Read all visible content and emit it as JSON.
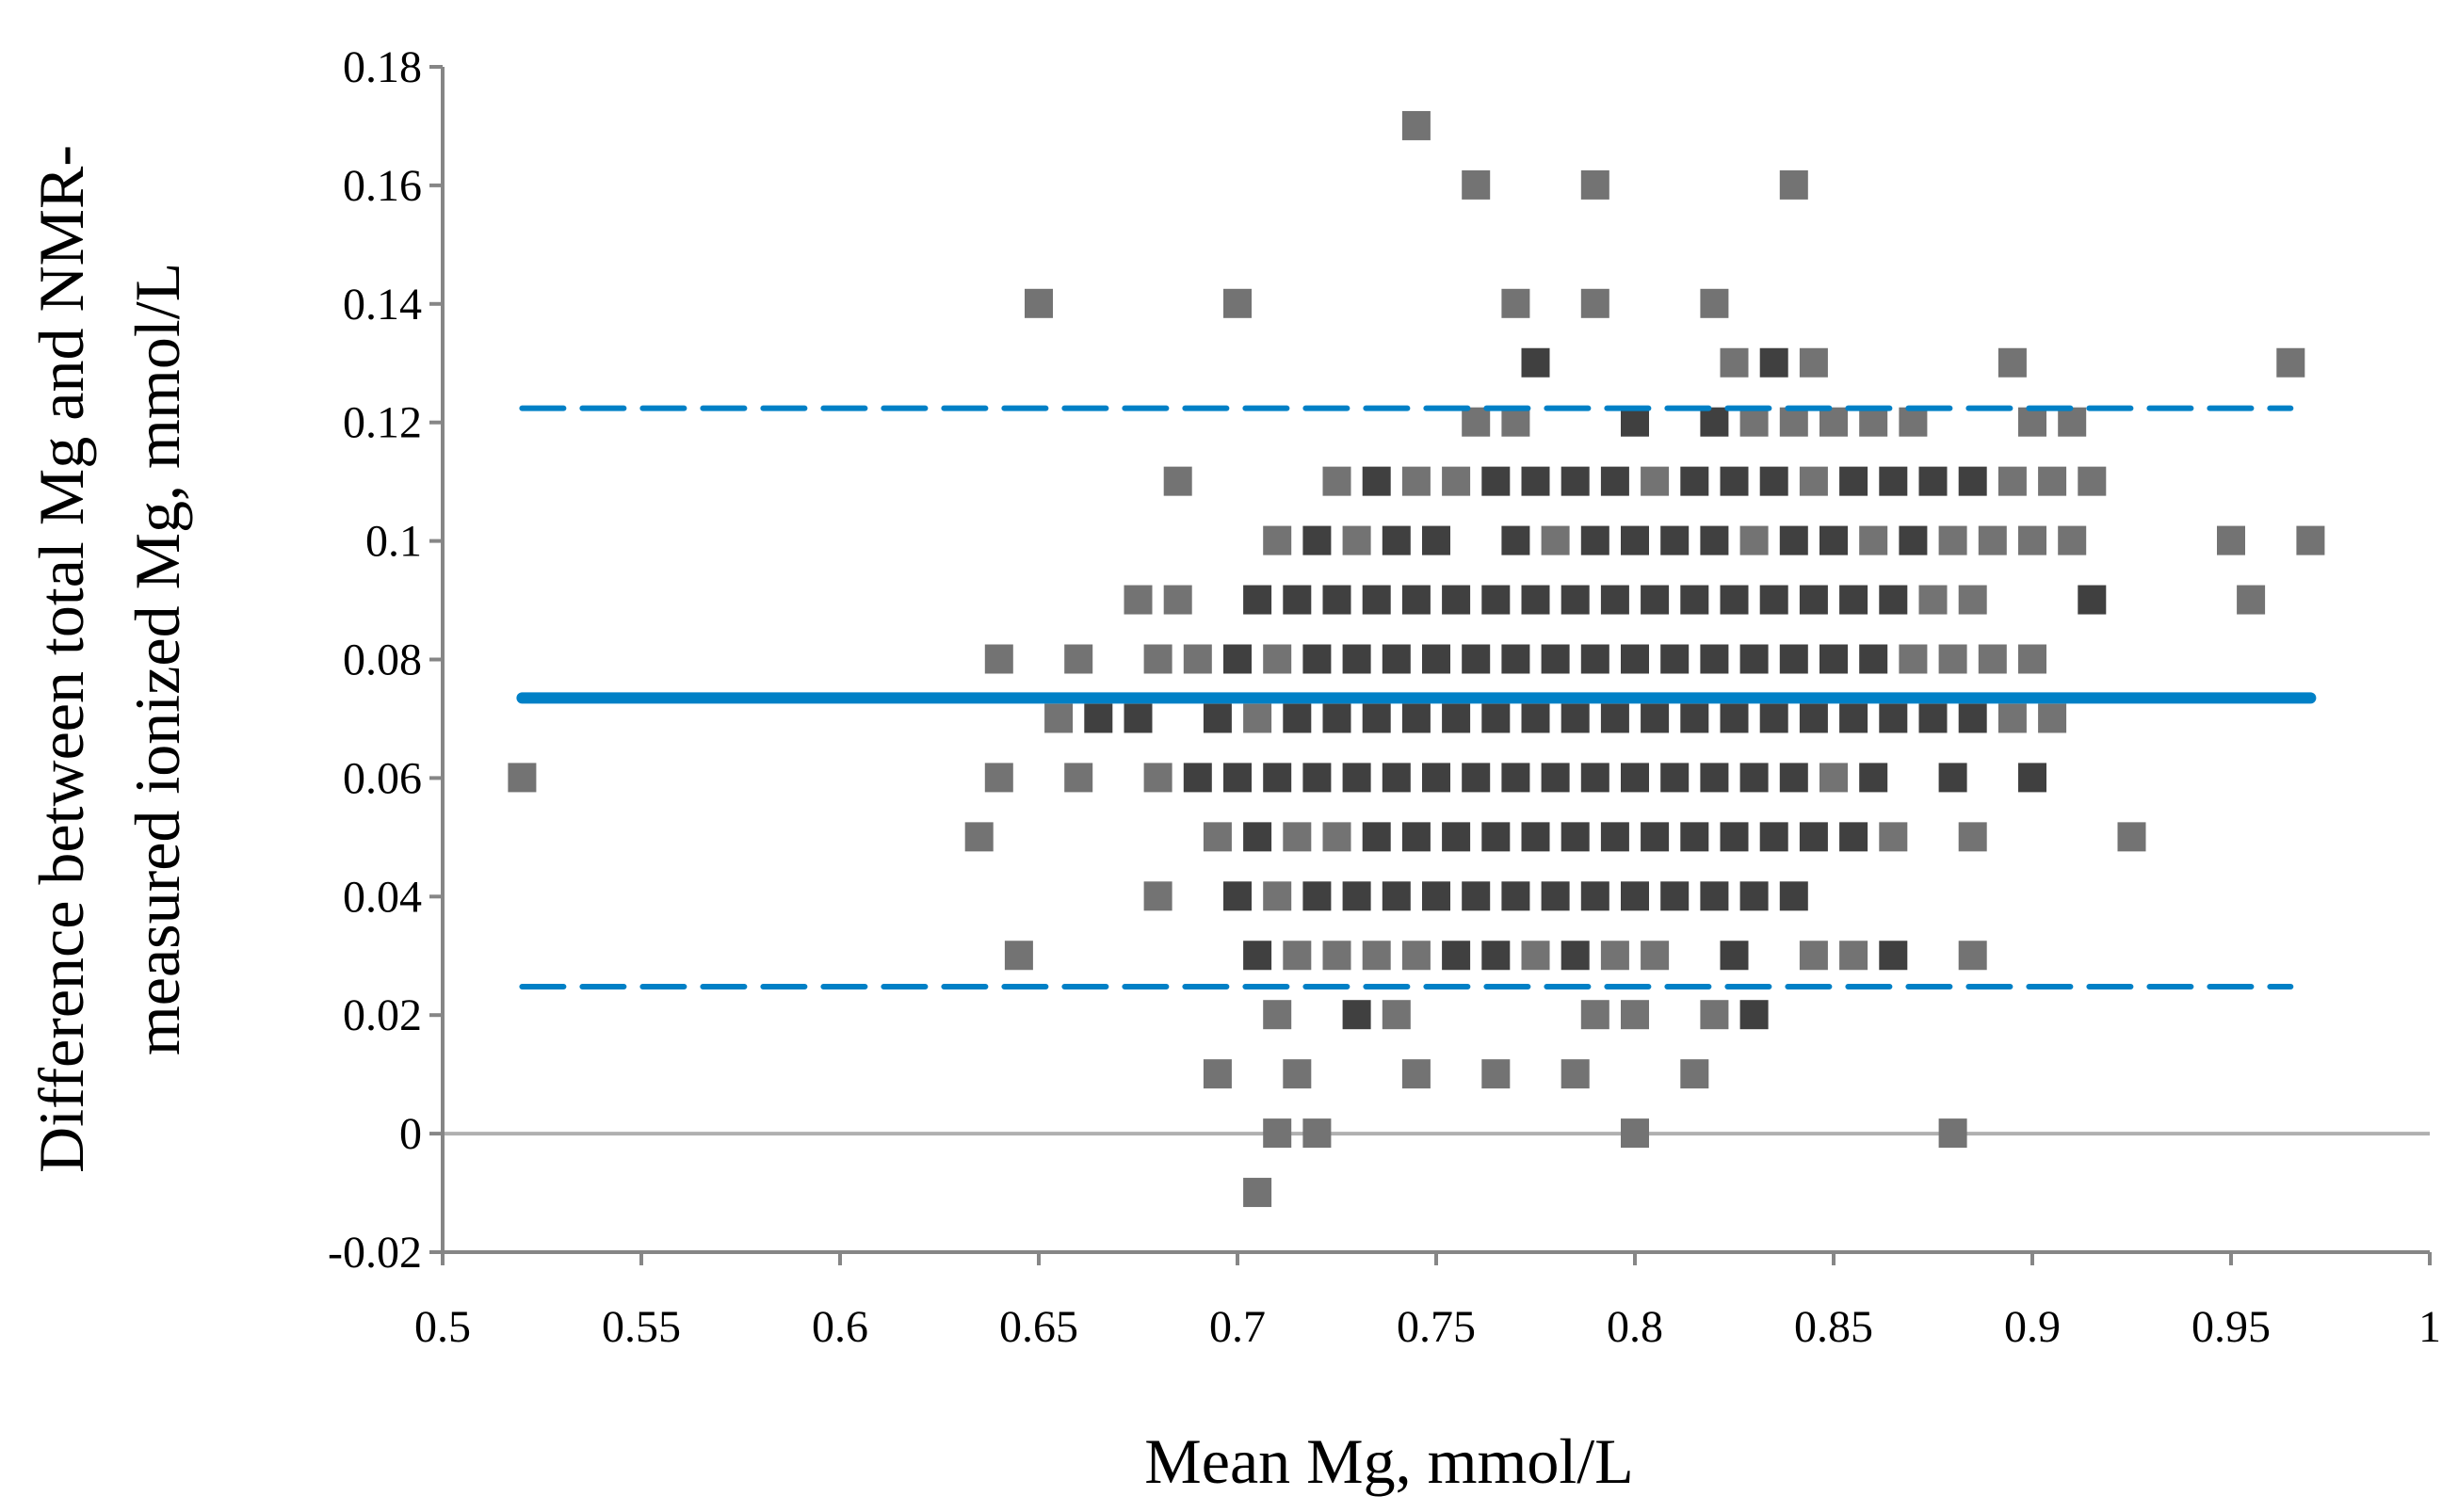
{
  "chart_data": {
    "type": "scatter",
    "title": "",
    "xlabel": "Mean Mg, mmol/L",
    "ylabel_lines": [
      "Difference between total Mg and NMR-",
      "measured ionized Mg, mmol/L"
    ],
    "xlim": [
      0.5,
      1.0
    ],
    "ylim": [
      -0.02,
      0.18
    ],
    "x_ticks": [
      0.5,
      0.55,
      0.6,
      0.65,
      0.7,
      0.75,
      0.8,
      0.85,
      0.9,
      0.95,
      1
    ],
    "x_tick_labels": [
      "0.5",
      "0.55",
      "0.6",
      "0.65",
      "0.7",
      "0.75",
      "0.8",
      "0.85",
      "0.9",
      "0.95",
      "1"
    ],
    "y_ticks": [
      -0.02,
      0,
      0.02,
      0.04,
      0.06,
      0.08,
      0.1,
      0.12,
      0.14,
      0.16,
      0.18
    ],
    "y_tick_labels": [
      "-0.02",
      "0",
      "0.02",
      "0.04",
      "0.06",
      "0.08",
      "0.1",
      "0.12",
      "0.14",
      "0.16",
      "0.18"
    ],
    "grid": false,
    "colors": {
      "dark": "#404040",
      "light": "#737373",
      "line": "#0080c6",
      "zero": "#b0b0b0"
    },
    "reference_lines": [
      {
        "name": "mean-difference",
        "y": 0.0735,
        "x_range": [
          0.52,
          0.97
        ],
        "style": "solid"
      },
      {
        "name": "upper-limit-of-agreement",
        "y": 0.1224,
        "x_range": [
          0.52,
          0.965
        ],
        "style": "dashed"
      },
      {
        "name": "lower-limit-of-agreement",
        "y": 0.0248,
        "x_range": [
          0.52,
          0.965
        ],
        "style": "dashed"
      }
    ],
    "series": [
      {
        "name": "light",
        "rows": [
          {
            "y": 0.17,
            "x": [
              0.745
            ]
          },
          {
            "y": 0.16,
            "x": [
              0.76,
              0.79,
              0.84
            ]
          },
          {
            "y": 0.14,
            "x": [
              0.65,
              0.7,
              0.77,
              0.79,
              0.82
            ]
          },
          {
            "y": 0.13,
            "x": [
              0.825,
              0.845,
              0.895,
              0.965
            ]
          },
          {
            "y": 0.12,
            "x": [
              0.76,
              0.77,
              0.83,
              0.84,
              0.85,
              0.86,
              0.87,
              0.9,
              0.91
            ]
          },
          {
            "y": 0.11,
            "x": [
              0.685,
              0.725,
              0.745,
              0.755,
              0.805,
              0.845,
              0.895,
              0.905,
              0.915
            ]
          },
          {
            "y": 0.1,
            "x": [
              0.71,
              0.73,
              0.78,
              0.83,
              0.86,
              0.88,
              0.89,
              0.9,
              0.91,
              0.95,
              0.97
            ]
          },
          {
            "y": 0.09,
            "x": [
              0.675,
              0.685,
              0.875,
              0.885,
              0.955
            ]
          },
          {
            "y": 0.08,
            "x": [
              0.64,
              0.66,
              0.68,
              0.69,
              0.71,
              0.87,
              0.88,
              0.89,
              0.9
            ]
          },
          {
            "y": 0.07,
            "x": [
              0.655,
              0.705,
              0.895,
              0.905
            ]
          },
          {
            "y": 0.06,
            "x": [
              0.52,
              0.64,
              0.66,
              0.68,
              0.85
            ]
          },
          {
            "y": 0.05,
            "x": [
              0.635,
              0.695,
              0.715,
              0.725,
              0.865,
              0.885,
              0.925
            ]
          },
          {
            "y": 0.04,
            "x": [
              0.68,
              0.71
            ]
          },
          {
            "y": 0.03,
            "x": [
              0.645,
              0.715,
              0.725,
              0.735,
              0.745,
              0.775,
              0.795,
              0.805,
              0.845,
              0.855,
              0.885
            ]
          },
          {
            "y": 0.02,
            "x": [
              0.71,
              0.74,
              0.79,
              0.8,
              0.82
            ]
          },
          {
            "y": 0.01,
            "x": [
              0.695,
              0.715,
              0.745,
              0.765,
              0.785,
              0.815
            ]
          },
          {
            "y": 0.0,
            "x": [
              0.71,
              0.72,
              0.8,
              0.88
            ]
          },
          {
            "y": -0.01,
            "x": [
              0.705
            ]
          }
        ]
      },
      {
        "name": "dark",
        "rows": [
          {
            "y": 0.13,
            "x": [
              0.775,
              0.835
            ]
          },
          {
            "y": 0.12,
            "x": [
              0.8,
              0.82
            ]
          },
          {
            "y": 0.11,
            "x": [
              0.735,
              0.765,
              0.775,
              0.785,
              0.795,
              0.815,
              0.825,
              0.835,
              0.855,
              0.865,
              0.875,
              0.885
            ]
          },
          {
            "y": 0.1,
            "x": [
              0.72,
              0.74,
              0.75,
              0.77,
              0.79,
              0.8,
              0.81,
              0.82,
              0.84,
              0.85,
              0.87
            ]
          },
          {
            "y": 0.09,
            "x": [
              0.705,
              0.715,
              0.725,
              0.735,
              0.745,
              0.755,
              0.765,
              0.775,
              0.785,
              0.795,
              0.805,
              0.815,
              0.825,
              0.835,
              0.845,
              0.855,
              0.865,
              0.915
            ]
          },
          {
            "y": 0.08,
            "x": [
              0.7,
              0.72,
              0.73,
              0.74,
              0.75,
              0.76,
              0.77,
              0.78,
              0.79,
              0.8,
              0.81,
              0.82,
              0.83,
              0.84,
              0.85,
              0.86
            ]
          },
          {
            "y": 0.07,
            "x": [
              0.665,
              0.675,
              0.695,
              0.715,
              0.725,
              0.735,
              0.745,
              0.755,
              0.765,
              0.775,
              0.785,
              0.795,
              0.805,
              0.815,
              0.825,
              0.835,
              0.845,
              0.855,
              0.865,
              0.875,
              0.885
            ]
          },
          {
            "y": 0.06,
            "x": [
              0.69,
              0.7,
              0.71,
              0.72,
              0.73,
              0.74,
              0.75,
              0.76,
              0.77,
              0.78,
              0.79,
              0.8,
              0.81,
              0.82,
              0.83,
              0.84,
              0.86,
              0.88,
              0.9
            ]
          },
          {
            "y": 0.05,
            "x": [
              0.705,
              0.735,
              0.745,
              0.755,
              0.765,
              0.775,
              0.785,
              0.795,
              0.805,
              0.815,
              0.825,
              0.835,
              0.845,
              0.855
            ]
          },
          {
            "y": 0.04,
            "x": [
              0.7,
              0.72,
              0.73,
              0.74,
              0.75,
              0.76,
              0.77,
              0.78,
              0.79,
              0.8,
              0.81,
              0.82,
              0.83,
              0.84
            ]
          },
          {
            "y": 0.03,
            "x": [
              0.705,
              0.755,
              0.765,
              0.785,
              0.825,
              0.865
            ]
          },
          {
            "y": 0.02,
            "x": [
              0.73,
              0.83
            ]
          }
        ]
      }
    ]
  }
}
